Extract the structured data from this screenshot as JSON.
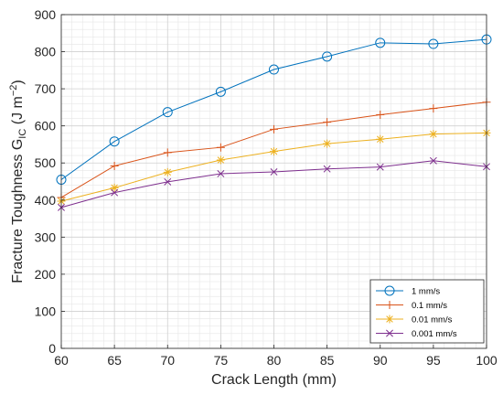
{
  "chart_data": {
    "type": "line",
    "xlabel": "Crack Length (mm)",
    "ylabel_main": "Fracture Toughness G",
    "ylabel_sub": "IC",
    "ylabel_unit_open": " (J m",
    "ylabel_sup": "−2",
    "ylabel_unit_close": ")",
    "xlim": [
      60,
      100
    ],
    "ylim": [
      0,
      900
    ],
    "xticks": [
      60,
      65,
      70,
      75,
      80,
      85,
      90,
      95,
      100
    ],
    "yticks": [
      0,
      100,
      200,
      300,
      400,
      500,
      600,
      700,
      800,
      900
    ],
    "grid": true,
    "minor_grid": true,
    "legend_position": "bottom-right",
    "x": [
      60,
      65,
      70,
      75,
      80,
      85,
      90,
      95,
      100
    ],
    "series": [
      {
        "name": "1 mm/s",
        "color": "#0072BD",
        "marker": "circle",
        "values": [
          455,
          558,
          637,
          692,
          752,
          787,
          824,
          821,
          833
        ]
      },
      {
        "name": "0.1 mm/s",
        "color": "#D95319",
        "marker": "plus",
        "values": [
          407,
          492,
          528,
          542,
          591,
          610,
          630,
          647,
          664
        ]
      },
      {
        "name": "0.01 mm/s",
        "color": "#EDB120",
        "marker": "asterisk",
        "values": [
          397,
          433,
          475,
          508,
          531,
          552,
          564,
          578,
          581
        ]
      },
      {
        "name": "0.001 mm/s",
        "color": "#7E2F8E",
        "marker": "x",
        "values": [
          380,
          420,
          449,
          471,
          476,
          484,
          489,
          506,
          490
        ]
      }
    ]
  }
}
